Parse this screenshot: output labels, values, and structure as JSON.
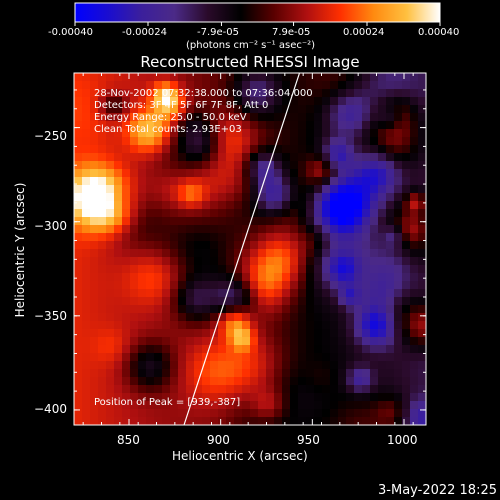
{
  "colorbar": {
    "ticks": [
      "-0.00040",
      "-0.00024",
      "-7.9e-05",
      "7.9e-05",
      "0.00024",
      "0.00040"
    ],
    "tick_values": [
      -0.0004,
      -0.00024,
      -7.9e-05,
      7.9e-05,
      0.00024,
      0.0004
    ],
    "range": [
      -0.0004,
      0.0004
    ],
    "unit_label": "(photons cm⁻² s⁻¹ asec⁻²)",
    "colormap": [
      "#0000ff",
      "#1a0dd0",
      "#3b1f9c",
      "#4b2a87",
      "#2a0a2a",
      "#000000",
      "#5a0000",
      "#b01010",
      "#ff3000",
      "#ff8a10",
      "#ffc040",
      "#ffffff"
    ]
  },
  "chart_data": {
    "type": "heatmap",
    "title": "Reconstructed RHESSI Image",
    "xlabel": "Heliocentric X (arcsec)",
    "ylabel": "Heliocentric Y (arcsec)",
    "xlim": [
      820,
      1012
    ],
    "ylim": [
      -408,
      -221
    ],
    "x_ticks": [
      850,
      900,
      950,
      1000
    ],
    "x_tick_labels": [
      "850",
      "900",
      "950",
      "1000"
    ],
    "y_ticks": [
      -250,
      -300,
      -350,
      -400
    ],
    "y_tick_labels": [
      "-250",
      "-300",
      "-350",
      "-400"
    ],
    "limb_line": [
      {
        "x": 880,
        "y": -408
      },
      {
        "x": 943,
        "y": -221
      }
    ],
    "peak": {
      "x": 939,
      "y": -387
    },
    "annotations": {
      "time_range": "28-Nov-2002 07:32:38.000 to 07:36:04.000",
      "detectors": "Detectors: 3F 4F 5F 6F 7F 8F, Att 0",
      "energy": "Energy Range: 25.0 - 50.0 keV",
      "method": "Clean    Total counts: 2.93E+03",
      "peak_text": "Position of Peak = [939,-387]"
    }
  },
  "footer": {
    "date": "3-May-2022 18:25"
  }
}
